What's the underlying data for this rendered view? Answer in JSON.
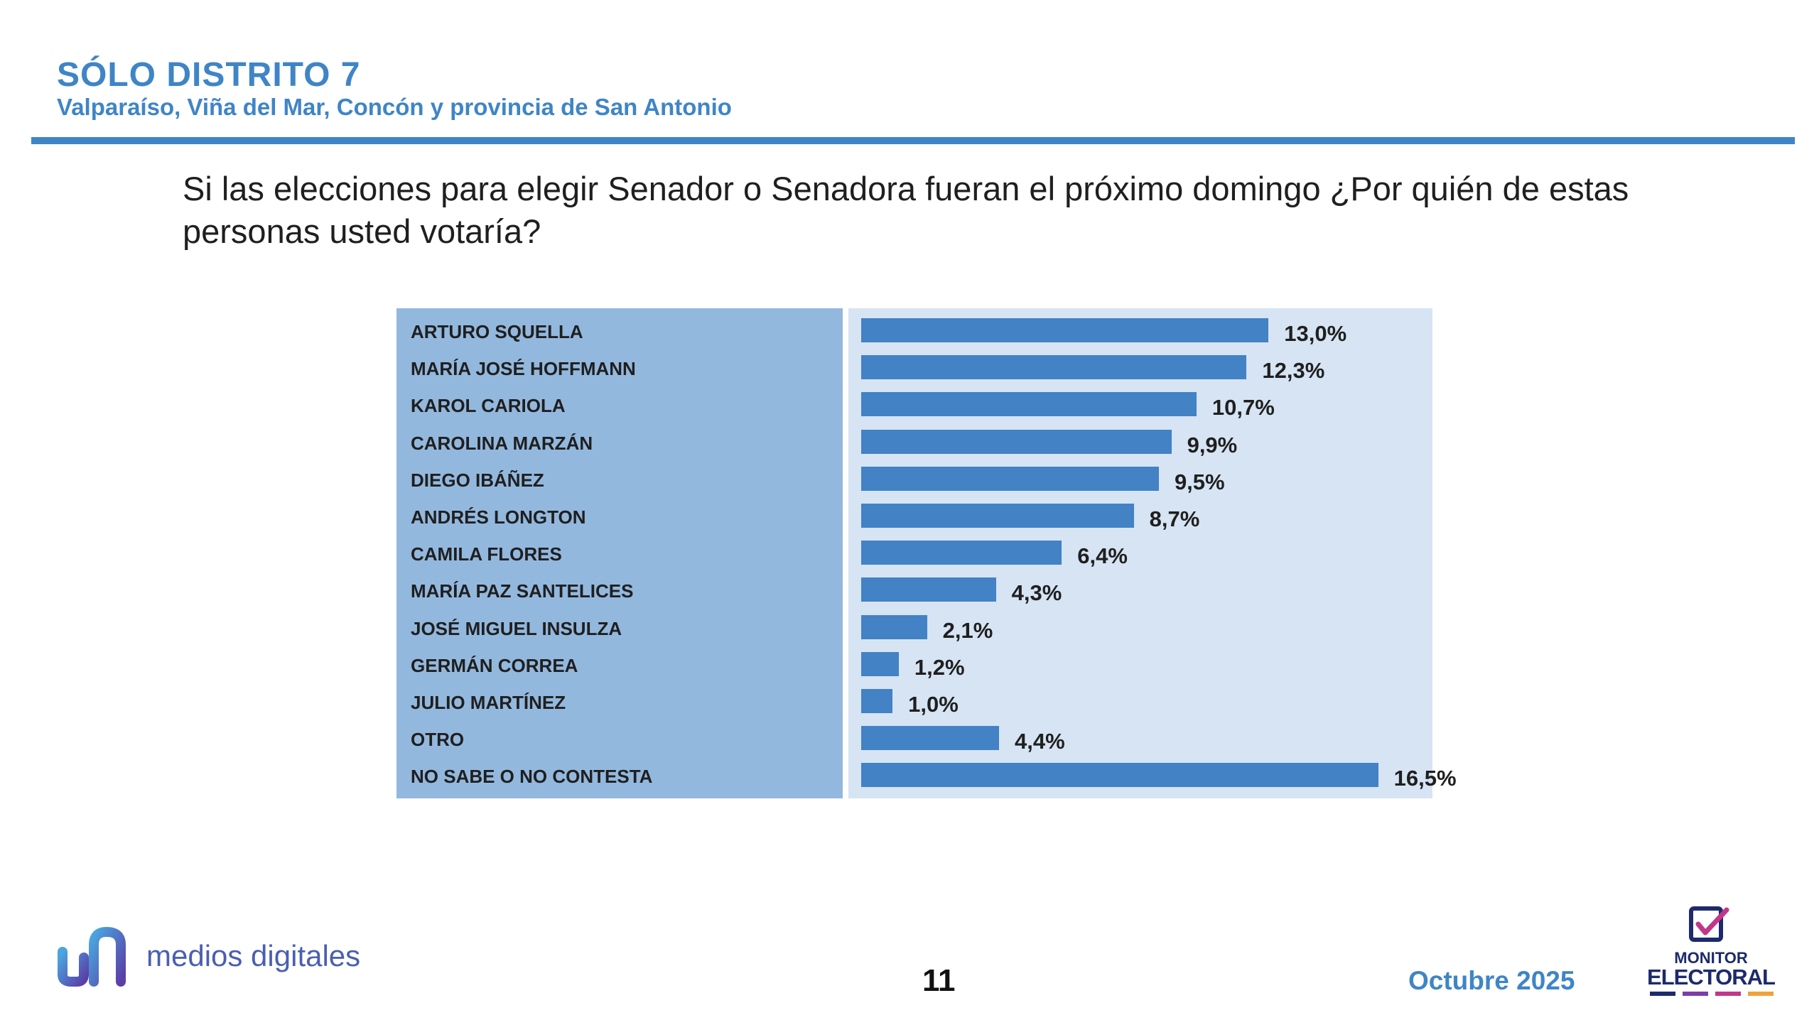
{
  "header": {
    "title": "SÓLO DISTRITO 7",
    "subtitle": "Valparaíso, Viña del Mar, Concón y provincia de San Antonio"
  },
  "question": "Si las elecciones para elegir Senador o Senadora fueran el próximo domingo ¿Por quién de estas personas usted votaría?",
  "chart_data": {
    "type": "bar",
    "orientation": "horizontal",
    "title": "Si las elecciones para elegir Senador o Senadora fueran el próximo domingo ¿Por quién de estas personas usted votaría?",
    "categories": [
      "ARTURO SQUELLA",
      "MARÍA JOSÉ HOFFMANN",
      "KAROL CARIOLA",
      "CAROLINA MARZÁN",
      "DIEGO IBÁÑEZ",
      "ANDRÉS LONGTON",
      "CAMILA FLORES",
      "MARÍA PAZ SANTELICES",
      "JOSÉ MIGUEL INSULZA",
      "GERMÁN CORREA",
      "JULIO MARTÍNEZ",
      "OTRO",
      "NO SABE O NO CONTESTA"
    ],
    "values": [
      13.0,
      12.3,
      10.7,
      9.9,
      9.5,
      8.7,
      6.4,
      4.3,
      2.1,
      1.2,
      1.0,
      4.4,
      16.5
    ],
    "value_labels": [
      "13,0%",
      "12,3%",
      "10,7%",
      "9,9%",
      "9,5%",
      "8,7%",
      "6,4%",
      "4,3%",
      "2,1%",
      "1,2%",
      "1,0%",
      "4,4%",
      "16,5%"
    ],
    "unit": "%",
    "xlim": [
      0,
      18
    ],
    "bar_color": "#4282c5",
    "label_panel_color": "#93b8de",
    "plot_panel_color": "#d6e4f3"
  },
  "footer": {
    "brand": "medios digitales",
    "page_number": "11",
    "date": "Octubre 2025",
    "monitor_line1": "MONITOR",
    "monitor_line2": "ELECTORAL"
  },
  "colors": {
    "accent": "#3f85c6",
    "text": "#1f1f1f"
  }
}
